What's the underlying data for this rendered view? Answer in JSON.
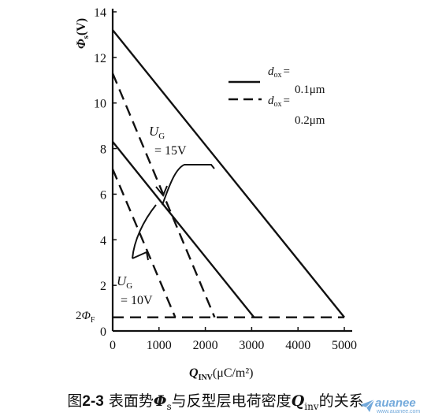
{
  "chart_data": {
    "type": "line",
    "title": "",
    "caption": {
      "prefix": "图",
      "number": "2-3",
      "text1": " 表面势",
      "phi_symbol": "Φ",
      "phi_sub": "s",
      "text2": "与反型层电荷密度",
      "q_symbol": "Q",
      "q_sub": "inv",
      "text3": "的关系"
    },
    "ylabel": {
      "symbol": "Φ",
      "sub": "s",
      "unit": "(V)"
    },
    "xlabel": {
      "symbol": "Q",
      "sub": "INV",
      "unit": "(μC/m²)"
    },
    "xlim": [
      0,
      5000
    ],
    "ylim": [
      0,
      14
    ],
    "x_ticks": [
      "0",
      "1000",
      "2000",
      "3000",
      "4000",
      "5000"
    ],
    "y_ticks": [
      "0",
      "2",
      "4",
      "6",
      "8",
      "10",
      "12",
      "14"
    ],
    "legend": [
      {
        "sym": "d",
        "sub": "ox",
        "eq": "=",
        "value": "0.1μm",
        "style": "solid"
      },
      {
        "sym": "d",
        "sub": "ox",
        "eq": "=",
        "value": "0.2μm",
        "style": "dashed"
      }
    ],
    "phiF_label": {
      "prefix": "2",
      "symbol": "Φ",
      "sub": "F"
    },
    "phiF_value": 0.6,
    "series": [
      {
        "style": "solid",
        "x": [
          0,
          5000
        ],
        "y": [
          13.2,
          0.6
        ]
      },
      {
        "style": "solid",
        "x": [
          0,
          3050
        ],
        "y": [
          8.3,
          0.6
        ]
      },
      {
        "style": "dashed",
        "x": [
          0,
          2200
        ],
        "y": [
          11.3,
          0.6
        ]
      },
      {
        "style": "dashed",
        "x": [
          0,
          1350
        ],
        "y": [
          7.1,
          0.6
        ]
      },
      {
        "style": "dashed",
        "x": [
          0,
          5000
        ],
        "y": [
          0.6,
          0.6
        ]
      }
    ],
    "annotations": [
      {
        "sym": "U",
        "sub": "G",
        "value": "= 15V"
      },
      {
        "sym": "U",
        "sub": "G",
        "value": "= 10V"
      }
    ]
  },
  "watermark": {
    "text": "auanee",
    "sub": "www.auanee.com"
  }
}
